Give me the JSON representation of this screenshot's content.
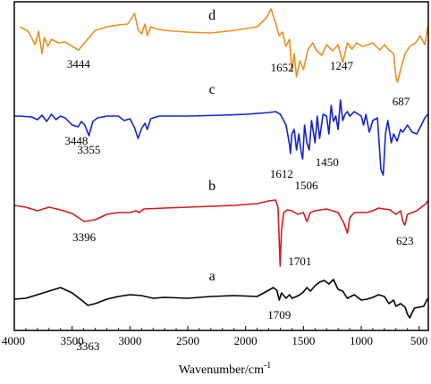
{
  "chart_data": {
    "type": "line",
    "title": "",
    "xlabel": "Wavenumber/cm",
    "xlabel_superscript": "-1",
    "ylabel": "",
    "xlim": [
      4000,
      420
    ],
    "x_reversed": true,
    "grid": false,
    "legend": "none",
    "x_ticks": [
      {
        "value": 4000,
        "label": "4000"
      },
      {
        "value": 3500,
        "label": "3500"
      },
      {
        "value": 3000,
        "label": "3000"
      },
      {
        "value": 2500,
        "label": "2500"
      },
      {
        "value": 2000,
        "label": "2000"
      },
      {
        "value": 1500,
        "label": "1500"
      },
      {
        "value": 1000,
        "label": "1000"
      },
      {
        "value": 500,
        "label": "500"
      }
    ],
    "series": [
      {
        "name": "d",
        "color": "#ee8c1f",
        "label": {
          "text": "d",
          "x": 2290
        },
        "peaks": [
          {
            "x": 3444,
            "label": "3444"
          },
          {
            "x": 1652,
            "label": "1652"
          },
          {
            "x": 1247,
            "label": "1247"
          },
          {
            "x": 687,
            "label": "687"
          }
        ],
        "points": [
          [
            3950,
            30
          ],
          [
            3880,
            35
          ],
          [
            3820,
            50
          ],
          [
            3790,
            35
          ],
          [
            3760,
            60
          ],
          [
            3740,
            42
          ],
          [
            3710,
            52
          ],
          [
            3680,
            44
          ],
          [
            3620,
            48
          ],
          [
            3560,
            47
          ],
          [
            3500,
            52
          ],
          [
            3444,
            56
          ],
          [
            3380,
            46
          ],
          [
            3300,
            34
          ],
          [
            3200,
            30
          ],
          [
            3100,
            28
          ],
          [
            3020,
            27
          ],
          [
            2960,
            15
          ],
          [
            2930,
            33
          ],
          [
            2900,
            38
          ],
          [
            2870,
            27
          ],
          [
            2850,
            40
          ],
          [
            2820,
            30
          ],
          [
            2780,
            32
          ],
          [
            2700,
            34
          ],
          [
            2500,
            36
          ],
          [
            2300,
            37
          ],
          [
            2100,
            34
          ],
          [
            1900,
            30
          ],
          [
            1820,
            20
          ],
          [
            1780,
            10
          ],
          [
            1740,
            26
          ],
          [
            1710,
            40
          ],
          [
            1680,
            36
          ],
          [
            1652,
            52
          ],
          [
            1620,
            44
          ],
          [
            1600,
            80
          ],
          [
            1580,
            60
          ],
          [
            1560,
            86
          ],
          [
            1530,
            68
          ],
          [
            1500,
            78
          ],
          [
            1460,
            55
          ],
          [
            1420,
            48
          ],
          [
            1390,
            56
          ],
          [
            1340,
            62
          ],
          [
            1300,
            50
          ],
          [
            1247,
            57
          ],
          [
            1200,
            50
          ],
          [
            1160,
            70
          ],
          [
            1120,
            48
          ],
          [
            1080,
            55
          ],
          [
            1040,
            48
          ],
          [
            990,
            52
          ],
          [
            940,
            50
          ],
          [
            900,
            48
          ],
          [
            840,
            56
          ],
          [
            800,
            50
          ],
          [
            760,
            56
          ],
          [
            720,
            60
          ],
          [
            700,
            86
          ],
          [
            687,
            92
          ],
          [
            660,
            78
          ],
          [
            620,
            60
          ],
          [
            580,
            52
          ],
          [
            530,
            48
          ],
          [
            490,
            40
          ],
          [
            450,
            50
          ],
          [
            425,
            30
          ]
        ]
      },
      {
        "name": "c",
        "color": "#1322d0",
        "label": {
          "text": "c",
          "x": 2290
        },
        "peaks": [
          {
            "x": 3448,
            "label": "3448"
          },
          {
            "x": 3355,
            "label": "3355"
          },
          {
            "x": 1612,
            "label": "1612"
          },
          {
            "x": 1506,
            "label": "1506"
          },
          {
            "x": 1450,
            "label": "1450"
          }
        ],
        "points": [
          [
            4000,
            130
          ],
          [
            3950,
            130
          ],
          [
            3850,
            131
          ],
          [
            3800,
            134
          ],
          [
            3760,
            129
          ],
          [
            3720,
            136
          ],
          [
            3680,
            128
          ],
          [
            3640,
            134
          ],
          [
            3600,
            130
          ],
          [
            3560,
            132
          ],
          [
            3500,
            140
          ],
          [
            3448,
            142
          ],
          [
            3420,
            136
          ],
          [
            3390,
            140
          ],
          [
            3355,
            152
          ],
          [
            3320,
            136
          ],
          [
            3280,
            132
          ],
          [
            3200,
            130
          ],
          [
            3100,
            130
          ],
          [
            3050,
            135
          ],
          [
            3000,
            133
          ],
          [
            2960,
            143
          ],
          [
            2930,
            155
          ],
          [
            2900,
            144
          ],
          [
            2870,
            138
          ],
          [
            2850,
            145
          ],
          [
            2820,
            133
          ],
          [
            2750,
            130
          ],
          [
            2500,
            130
          ],
          [
            2200,
            129
          ],
          [
            2000,
            128
          ],
          [
            1800,
            126
          ],
          [
            1740,
            125
          ],
          [
            1700,
            128
          ],
          [
            1650,
            140
          ],
          [
            1620,
            162
          ],
          [
            1612,
            172
          ],
          [
            1600,
            150
          ],
          [
            1580,
            145
          ],
          [
            1560,
            168
          ],
          [
            1540,
            150
          ],
          [
            1520,
            170
          ],
          [
            1506,
            178
          ],
          [
            1490,
            140
          ],
          [
            1470,
            160
          ],
          [
            1450,
            168
          ],
          [
            1430,
            135
          ],
          [
            1400,
            160
          ],
          [
            1380,
            130
          ],
          [
            1360,
            155
          ],
          [
            1330,
            128
          ],
          [
            1300,
            130
          ],
          [
            1280,
            150
          ],
          [
            1260,
            118
          ],
          [
            1240,
            136
          ],
          [
            1220,
            130
          ],
          [
            1200,
            145
          ],
          [
            1180,
            112
          ],
          [
            1160,
            135
          ],
          [
            1140,
            128
          ],
          [
            1120,
            125
          ],
          [
            1100,
            130
          ],
          [
            1060,
            125
          ],
          [
            1000,
            130
          ],
          [
            980,
            140
          ],
          [
            960,
            128
          ],
          [
            930,
            148
          ],
          [
            900,
            135
          ],
          [
            860,
            132
          ],
          [
            830,
            190
          ],
          [
            810,
            196
          ],
          [
            790,
            150
          ],
          [
            770,
            135
          ],
          [
            740,
            160
          ],
          [
            720,
            150
          ],
          [
            690,
            158
          ],
          [
            660,
            145
          ],
          [
            640,
            148
          ],
          [
            600,
            140
          ],
          [
            560,
            148
          ],
          [
            520,
            150
          ],
          [
            480,
            140
          ],
          [
            450,
            132
          ],
          [
            425,
            128
          ]
        ]
      },
      {
        "name": "b",
        "color": "#d7191c",
        "label": {
          "text": "b",
          "x": 2290
        },
        "peaks": [
          {
            "x": 3396,
            "label": "3396"
          },
          {
            "x": 1701,
            "label": "1701"
          },
          {
            "x": 623,
            "label": "623"
          }
        ],
        "points": [
          [
            4000,
            230
          ],
          [
            3900,
            232
          ],
          [
            3800,
            236
          ],
          [
            3700,
            232
          ],
          [
            3600,
            235
          ],
          [
            3500,
            239
          ],
          [
            3396,
            248
          ],
          [
            3300,
            246
          ],
          [
            3200,
            240
          ],
          [
            3100,
            238
          ],
          [
            3000,
            238
          ],
          [
            2950,
            236
          ],
          [
            2920,
            238
          ],
          [
            2880,
            234
          ],
          [
            2700,
            233
          ],
          [
            2500,
            232
          ],
          [
            2300,
            231
          ],
          [
            2100,
            230
          ],
          [
            1900,
            228
          ],
          [
            1800,
            225
          ],
          [
            1740,
            224
          ],
          [
            1720,
            232
          ],
          [
            1710,
            268
          ],
          [
            1701,
            298
          ],
          [
            1690,
            258
          ],
          [
            1670,
            238
          ],
          [
            1640,
            235
          ],
          [
            1600,
            236
          ],
          [
            1550,
            240
          ],
          [
            1500,
            238
          ],
          [
            1470,
            248
          ],
          [
            1440,
            238
          ],
          [
            1400,
            236
          ],
          [
            1300,
            234
          ],
          [
            1250,
            236
          ],
          [
            1200,
            238
          ],
          [
            1150,
            250
          ],
          [
            1120,
            261
          ],
          [
            1100,
            244
          ],
          [
            1060,
            238
          ],
          [
            1000,
            238
          ],
          [
            950,
            238
          ],
          [
            900,
            236
          ],
          [
            850,
            233
          ],
          [
            800,
            234
          ],
          [
            750,
            235
          ],
          [
            700,
            240
          ],
          [
            660,
            236
          ],
          [
            640,
            248
          ],
          [
            623,
            252
          ],
          [
            600,
            240
          ],
          [
            560,
            238
          ],
          [
            520,
            236
          ],
          [
            480,
            232
          ],
          [
            440,
            228
          ],
          [
            425,
            225
          ]
        ]
      },
      {
        "name": "a",
        "color": "#000000",
        "label": {
          "text": "a",
          "x": 2290
        },
        "peaks": [
          {
            "x": 3363,
            "label": "3363"
          },
          {
            "x": 1709,
            "label": "1709"
          }
        ],
        "points": [
          [
            4000,
            335
          ],
          [
            3900,
            334
          ],
          [
            3800,
            330
          ],
          [
            3700,
            326
          ],
          [
            3600,
            322
          ],
          [
            3500,
            328
          ],
          [
            3400,
            338
          ],
          [
            3363,
            342
          ],
          [
            3300,
            340
          ],
          [
            3200,
            335
          ],
          [
            3100,
            332
          ],
          [
            3000,
            330
          ],
          [
            2900,
            331
          ],
          [
            2800,
            334
          ],
          [
            2700,
            333
          ],
          [
            2500,
            334
          ],
          [
            2300,
            332
          ],
          [
            2100,
            331
          ],
          [
            1900,
            332
          ],
          [
            1800,
            325
          ],
          [
            1760,
            322
          ],
          [
            1730,
            325
          ],
          [
            1709,
            336
          ],
          [
            1690,
            328
          ],
          [
            1650,
            334
          ],
          [
            1620,
            330
          ],
          [
            1600,
            334
          ],
          [
            1560,
            332
          ],
          [
            1530,
            330
          ],
          [
            1500,
            327
          ],
          [
            1470,
            322
          ],
          [
            1440,
            326
          ],
          [
            1400,
            320
          ],
          [
            1360,
            316
          ],
          [
            1320,
            314
          ],
          [
            1280,
            318
          ],
          [
            1240,
            313
          ],
          [
            1200,
            324
          ],
          [
            1160,
            326
          ],
          [
            1120,
            334
          ],
          [
            1060,
            330
          ],
          [
            1000,
            336
          ],
          [
            950,
            335
          ],
          [
            900,
            333
          ],
          [
            850,
            330
          ],
          [
            800,
            332
          ],
          [
            760,
            340
          ],
          [
            720,
            336
          ],
          [
            700,
            343
          ],
          [
            660,
            340
          ],
          [
            620,
            344
          ],
          [
            600,
            352
          ],
          [
            580,
            356
          ],
          [
            560,
            350
          ],
          [
            540,
            345
          ],
          [
            500,
            344
          ],
          [
            460,
            343
          ],
          [
            440,
            338
          ],
          [
            425,
            334
          ]
        ]
      }
    ]
  }
}
